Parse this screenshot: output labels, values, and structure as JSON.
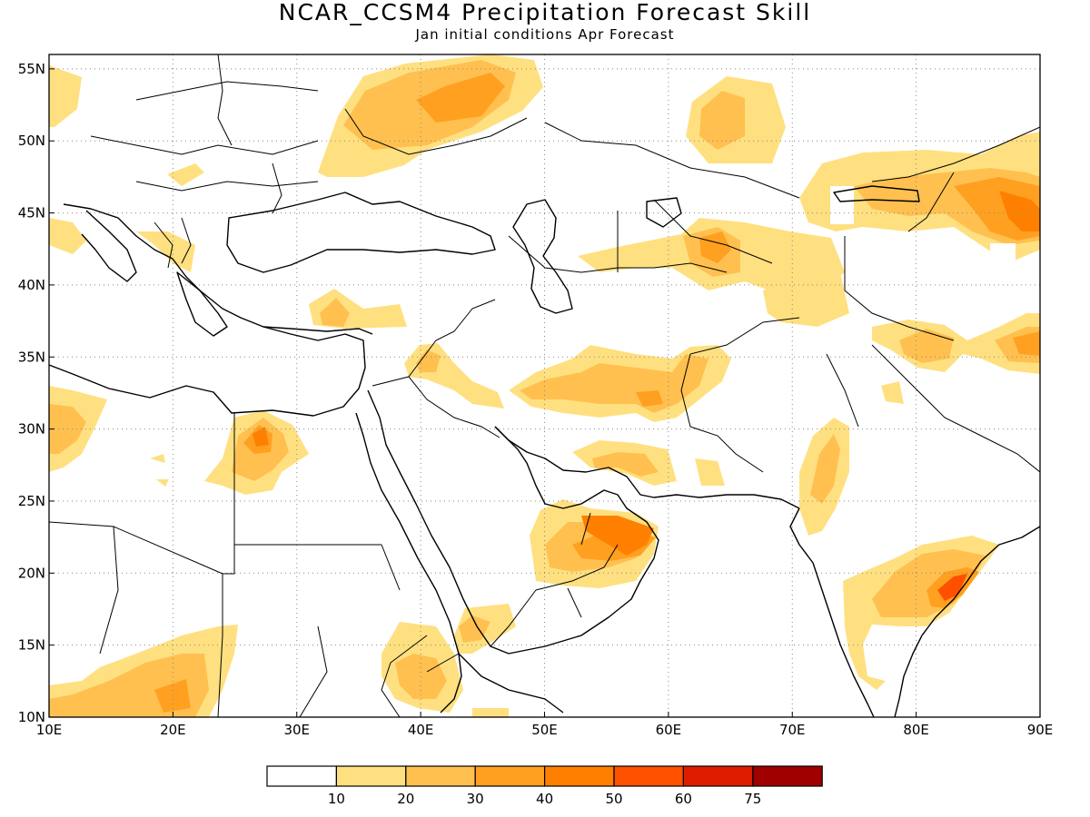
{
  "header": {
    "title": "NCAR_CCSM4 Precipitation Forecast Skill",
    "subtitle": "Jan initial conditions  Apr Forecast"
  },
  "map": {
    "lon_range": [
      10,
      90
    ],
    "lat_range": [
      10,
      56
    ],
    "lon_ticks": [
      "10E",
      "20E",
      "30E",
      "40E",
      "50E",
      "60E",
      "70E",
      "80E",
      "90E"
    ],
    "lat_ticks": [
      "10N",
      "15N",
      "20N",
      "25N",
      "30N",
      "35N",
      "40N",
      "45N",
      "50N",
      "55N"
    ],
    "grid": "dotted"
  },
  "legend": {
    "labels": [
      "10",
      "20",
      "30",
      "40",
      "50",
      "60",
      "75"
    ],
    "colors": [
      "#ffffff",
      "#ffe080",
      "#ffc050",
      "#ffa020",
      "#ff8000",
      "#ff5000",
      "#e01c00",
      "#a00000"
    ]
  },
  "colors": {
    "c1": "#ffe080",
    "c2": "#ffc050",
    "c3": "#ffa020",
    "c4": "#ff8000",
    "c5": "#ff5000"
  }
}
